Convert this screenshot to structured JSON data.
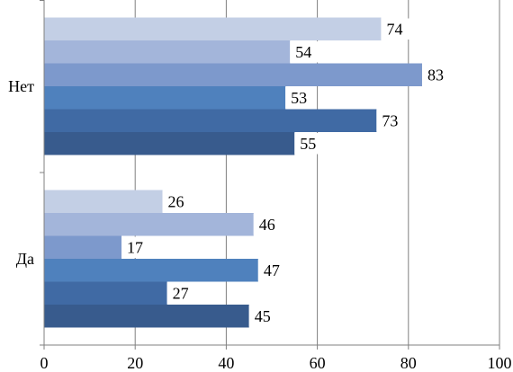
{
  "chart_data": {
    "type": "bar",
    "orientation": "horizontal",
    "categories": [
      "Нет",
      "Да"
    ],
    "series": [
      {
        "values": [
          74,
          26
        ],
        "color": "#c3cfe5"
      },
      {
        "values": [
          54,
          46
        ],
        "color": "#a3b5da"
      },
      {
        "values": [
          83,
          17
        ],
        "color": "#7d99cc"
      },
      {
        "values": [
          53,
          47
        ],
        "color": "#4f81bd"
      },
      {
        "values": [
          73,
          27
        ],
        "color": "#406aa4"
      },
      {
        "values": [
          55,
          45
        ],
        "color": "#385b8d"
      }
    ],
    "xlim": [
      0,
      100
    ],
    "x_ticks": [
      "0",
      "20",
      "40",
      "60",
      "80",
      "100"
    ],
    "grid": "vertical",
    "data_labels": true,
    "legend": "none"
  }
}
